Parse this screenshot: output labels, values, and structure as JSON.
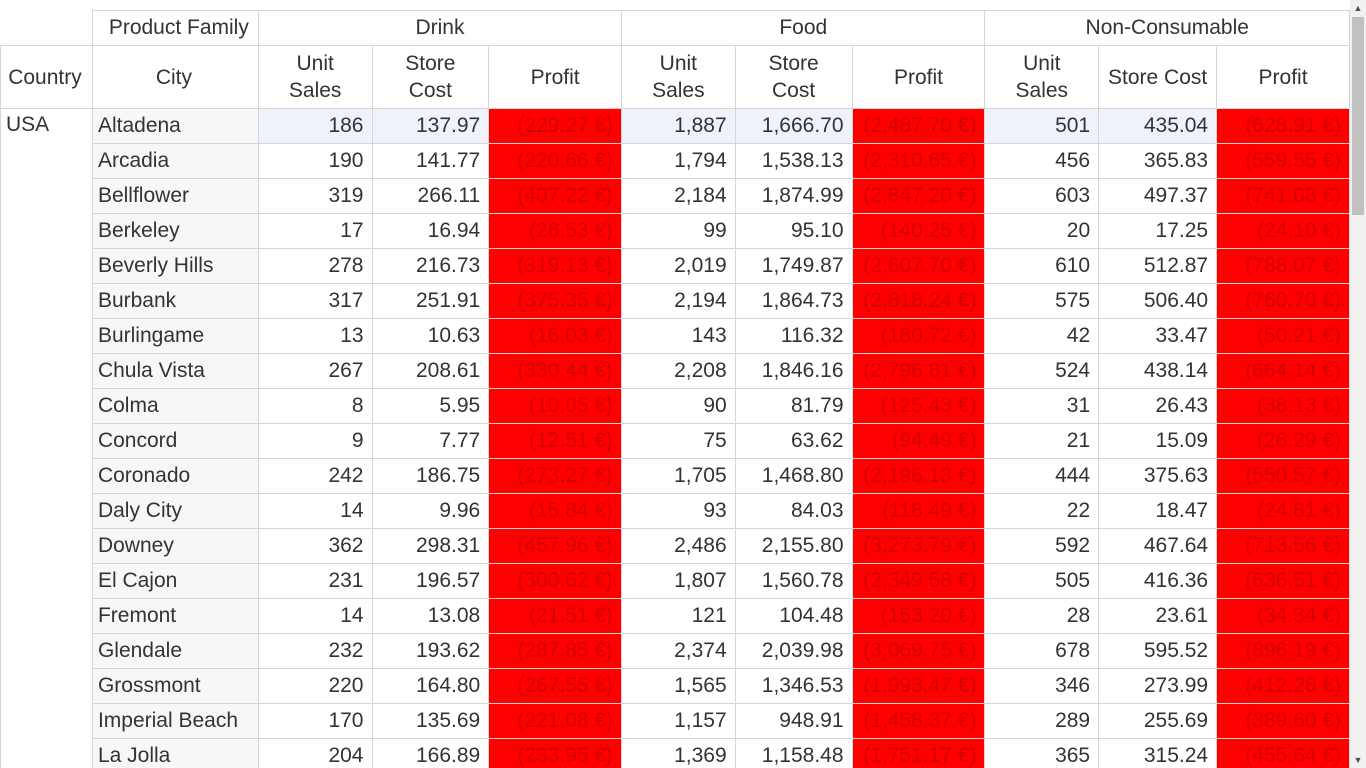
{
  "headers": {
    "product_family": "Product Family",
    "country": "Country",
    "city": "City",
    "groups": [
      "Drink",
      "Food",
      "Non-Consumable"
    ],
    "measures": {
      "unit_sales_line1": "Unit",
      "unit_sales_line2": "Sales",
      "store_cost_line1": "Store",
      "store_cost_line2": "Cost",
      "store_cost_full": "Store Cost",
      "profit": "Profit"
    }
  },
  "country_value": "USA",
  "rows": [
    {
      "city": "Altadena",
      "v": [
        "186",
        "137.97",
        "(229.27 €)",
        "1,887",
        "1,666.70",
        "(2,487.70 €)",
        "501",
        "435.04",
        "(628.91 €)"
      ]
    },
    {
      "city": "Arcadia",
      "v": [
        "190",
        "141.77",
        "(220.66 €)",
        "1,794",
        "1,538.13",
        "(2,310.65 €)",
        "456",
        "365.83",
        "(559.55 €)"
      ]
    },
    {
      "city": "Bellflower",
      "v": [
        "319",
        "266.11",
        "(407.22 €)",
        "2,184",
        "1,874.99",
        "(2,847.20 €)",
        "603",
        "497.37",
        "(741.08 €)"
      ]
    },
    {
      "city": "Berkeley",
      "v": [
        "17",
        "16.94",
        "(26.53 €)",
        "99",
        "95.10",
        "(140.25 €)",
        "20",
        "17.25",
        "(24.10 €)"
      ]
    },
    {
      "city": "Beverly Hills",
      "v": [
        "278",
        "216.73",
        "(319.13 €)",
        "2,019",
        "1,749.87",
        "(2,607.70 €)",
        "610",
        "512.87",
        "(788.07 €)"
      ]
    },
    {
      "city": "Burbank",
      "v": [
        "317",
        "251.91",
        "(375.35 €)",
        "2,194",
        "1,864.73",
        "(2,818.24 €)",
        "575",
        "506.40",
        "(760.70 €)"
      ]
    },
    {
      "city": "Burlingame",
      "v": [
        "13",
        "10.63",
        "(16.03 €)",
        "143",
        "116.32",
        "(180.72 €)",
        "42",
        "33.47",
        "(50.21 €)"
      ]
    },
    {
      "city": "Chula Vista",
      "v": [
        "267",
        "208.61",
        "(330.44 €)",
        "2,208",
        "1,846.16",
        "(2,796.81 €)",
        "524",
        "438.14",
        "(664.14 €)"
      ]
    },
    {
      "city": "Colma",
      "v": [
        "8",
        "5.95",
        "(10.05 €)",
        "90",
        "81.79",
        "(125.43 €)",
        "31",
        "26.43",
        "(38.13 €)"
      ]
    },
    {
      "city": "Concord",
      "v": [
        "9",
        "7.77",
        "(12.51 €)",
        "75",
        "63.62",
        "(94.49 €)",
        "21",
        "15.09",
        "(26.29 €)"
      ]
    },
    {
      "city": "Coronado",
      "v": [
        "242",
        "186.75",
        "(273.27 €)",
        "1,705",
        "1,468.80",
        "(2,196.13 €)",
        "444",
        "375.63",
        "(550.57 €)"
      ]
    },
    {
      "city": "Daly City",
      "v": [
        "14",
        "9.96",
        "(15.84 €)",
        "93",
        "84.03",
        "(118.49 €)",
        "22",
        "18.47",
        "(24.81 €)"
      ]
    },
    {
      "city": "Downey",
      "v": [
        "362",
        "298.31",
        "(457.96 €)",
        "2,486",
        "2,155.80",
        "(3,273.79 €)",
        "592",
        "467.64",
        "(713.56 €)"
      ]
    },
    {
      "city": "El Cajon",
      "v": [
        "231",
        "196.57",
        "(300.62 €)",
        "1,807",
        "1,560.78",
        "(2,349.58 €)",
        "505",
        "416.36",
        "(636.51 €)"
      ]
    },
    {
      "city": "Fremont",
      "v": [
        "14",
        "13.08",
        "(21.51 €)",
        "121",
        "104.48",
        "(153.20 €)",
        "28",
        "23.61",
        "(34.34 €)"
      ]
    },
    {
      "city": "Glendale",
      "v": [
        "232",
        "193.62",
        "(287.85 €)",
        "2,374",
        "2,039.98",
        "(3,069.75 €)",
        "678",
        "595.52",
        "(896.19 €)"
      ]
    },
    {
      "city": "Grossmont",
      "v": [
        "220",
        "164.80",
        "(267.55 €)",
        "1,565",
        "1,346.53",
        "(1,993.47 €)",
        "346",
        "273.99",
        "(412.26 €)"
      ]
    },
    {
      "city": "Imperial Beach",
      "v": [
        "170",
        "135.69",
        "(221.08 €)",
        "1,157",
        "948.91",
        "(1,458.37 €)",
        "289",
        "255.69",
        "(389.60 €)"
      ]
    },
    {
      "city": "La Jolla",
      "v": [
        "204",
        "166.89",
        "(233.95 €)",
        "1,369",
        "1,158.48",
        "(1,751.17 €)",
        "365",
        "315.24",
        "(455.64 €)"
      ]
    }
  ],
  "colors": {
    "negative_bg": "#ff0000",
    "negative_text": "#d40000",
    "header_bg": "#efefef",
    "selected_row_bg": "#eef2fa"
  },
  "scrollbar": {
    "up_icon": "chevron-up-icon",
    "down_icon": "chevron-down-icon"
  }
}
